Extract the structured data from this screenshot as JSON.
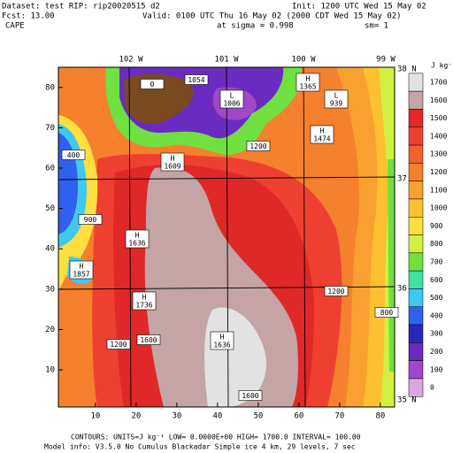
{
  "header": {
    "dataset": "Dataset: test  RIP: rip20020515  d2",
    "init": "Init: 1200 UTC Wed 15 May 02",
    "fcst": "Fcst:    13.00",
    "valid": "Valid: 0100 UTC Thu 16 May 02 (2000 CDT Wed 15 May 02)",
    "field": "CAPE",
    "level": "at sigma = 0.998",
    "smoothing": "sm= 1"
  },
  "map": {
    "xlim": [
      0.9,
      83.5
    ],
    "ylim": [
      0.8,
      85
    ],
    "xticks": [
      10,
      20,
      30,
      40,
      50,
      60,
      70,
      80
    ],
    "yticks": [
      10,
      20,
      30,
      40,
      50,
      60,
      70,
      80
    ],
    "longitudes": [
      "102 W",
      "101 W",
      "100 W",
      "99 W"
    ],
    "latitudes": [
      "38 N",
      "37 N",
      "36 N",
      "35 N"
    ],
    "labels": [
      "0",
      "1054",
      "L\n1006",
      "1200",
      "H\n1609",
      "400",
      "900",
      "H\n1636",
      "H\n1857",
      "H\n1736",
      "1600",
      "1200",
      "H\n1636",
      "1600",
      "1200",
      "800",
      "H\n1365",
      "L\n939",
      "H\n1474"
    ]
  },
  "colorbar": {
    "units": "J kg⁻¹",
    "levels": [
      {
        "label": "1700",
        "color": "#e2e2e2"
      },
      {
        "label": "1600",
        "color": "#c4a4a4"
      },
      {
        "label": "1500",
        "color": "#e02828"
      },
      {
        "label": "1400",
        "color": "#ee4030"
      },
      {
        "label": "1300",
        "color": "#f26030"
      },
      {
        "label": "1200",
        "color": "#f5802e"
      },
      {
        "label": "1100",
        "color": "#f8a030"
      },
      {
        "label": "1000",
        "color": "#fcc030"
      },
      {
        "label": "900",
        "color": "#fde040"
      },
      {
        "label": "800",
        "color": "#d0f040"
      },
      {
        "label": "700",
        "color": "#70e040"
      },
      {
        "label": "600",
        "color": "#40e0a0"
      },
      {
        "label": "500",
        "color": "#40c8f0"
      },
      {
        "label": "400",
        "color": "#3060f0"
      },
      {
        "label": "300",
        "color": "#2828b8"
      },
      {
        "label": "200",
        "color": "#6a2cc0"
      },
      {
        "label": "100",
        "color": "#a048c8"
      },
      {
        "label": "0",
        "color": "#d8a8e0"
      }
    ]
  },
  "footer": {
    "contours": "CONTOURS:  UNITS=J kg⁻¹  LOW= 0.0000E+00  HIGH=  1700.0     INTERVAL=   100.00",
    "model": "Model info: V3.5.0 No Cumulus Blackadar  Simple ice    4 km, 29 levels,    7 sec"
  }
}
